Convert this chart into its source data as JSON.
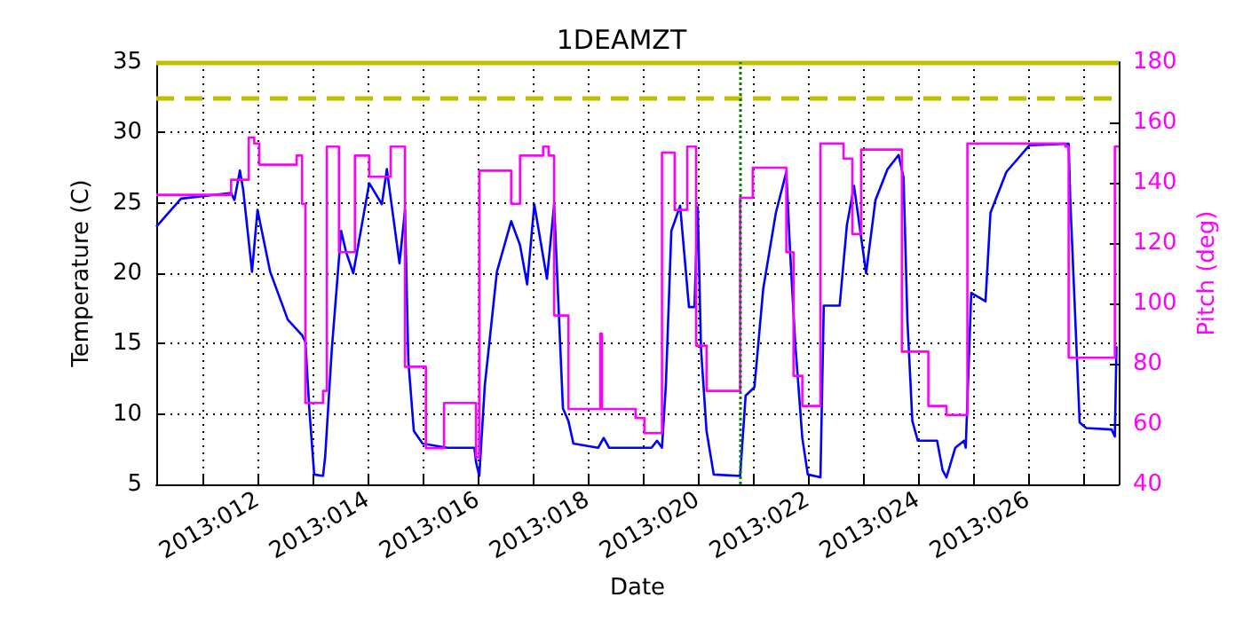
{
  "chart_data": {
    "type": "line",
    "title": "1DEAMZT",
    "xlabel": "Date",
    "ylabel": "Temperature (C)",
    "y2label": "Pitch (deg)",
    "xlim": [
      "2013-01-10T03:50",
      "2013-01-27T15:36"
    ],
    "xticks": [
      {
        "value": "2013-01-11",
        "label": null
      },
      {
        "value": "2013-01-12",
        "label": "2013:012"
      },
      {
        "value": "2013-01-13",
        "label": null
      },
      {
        "value": "2013-01-14",
        "label": "2013:014"
      },
      {
        "value": "2013-01-15",
        "label": null
      },
      {
        "value": "2013-01-16",
        "label": "2013:016"
      },
      {
        "value": "2013-01-17",
        "label": null
      },
      {
        "value": "2013-01-18",
        "label": "2013:018"
      },
      {
        "value": "2013-01-19",
        "label": null
      },
      {
        "value": "2013-01-20",
        "label": "2013:020"
      },
      {
        "value": "2013-01-21",
        "label": null
      },
      {
        "value": "2013-01-22",
        "label": "2013:022"
      },
      {
        "value": "2013-01-23",
        "label": null
      },
      {
        "value": "2013-01-24",
        "label": "2013:024"
      },
      {
        "value": "2013-01-25",
        "label": null
      },
      {
        "value": "2013-01-26",
        "label": "2013:026"
      },
      {
        "value": "2013-01-27",
        "label": null
      }
    ],
    "ylim": [
      5,
      35
    ],
    "yticks": [
      5,
      10,
      15,
      20,
      25,
      30,
      35
    ],
    "y2lim": [
      40,
      180
    ],
    "y2ticks": [
      40,
      60,
      80,
      100,
      120,
      140,
      160,
      180
    ],
    "grid": true,
    "series": [
      {
        "color": "#0000ff",
        "x": [
          "2013-01-10T03:50",
          "2013-01-10T14:38",
          "2013-01-11T12:29",
          "2013-01-11T13:55",
          "2013-01-11T16:19",
          "2013-01-11T17:46",
          "2013-01-11T21:36",
          "2013-01-12T00:00",
          "2013-01-12T05:31",
          "2013-01-12T13:12",
          "2013-01-12T19:26",
          "2013-01-12T20:53",
          "2013-01-12T22:34",
          "2013-01-13T00:43",
          "2013-01-13T04:34",
          "2013-01-13T05:31",
          "2013-01-13T08:24",
          "2013-01-13T12:29",
          "2013-01-13T14:38",
          "2013-01-13T17:46",
          "2013-01-14T00:43",
          "2013-01-14T06:14",
          "2013-01-14T08:24",
          "2013-01-14T13:55",
          "2013-01-14T16:19",
          "2013-01-14T17:46",
          "2013-01-14T20:10",
          "2013-01-15T00:00",
          "2013-01-15T10:48",
          "2013-01-15T22:34",
          "2013-01-15T23:17",
          "2013-01-16T00:43",
          "2013-01-16T03:07",
          "2013-01-16T08:24",
          "2013-01-16T14:38",
          "2013-01-16T18:29",
          "2013-01-16T21:36",
          "2013-01-17T00:43",
          "2013-01-17T06:14",
          "2013-01-17T09:22",
          "2013-01-17T13:12",
          "2013-01-17T15:36",
          "2013-01-17T17:46",
          "2013-01-18T04:34",
          "2013-01-18T06:58",
          "2013-01-18T09:22",
          "2013-01-19T03:50",
          "2013-01-19T06:14",
          "2013-01-19T08:24",
          "2013-01-19T10:05",
          "2013-01-19T12:29",
          "2013-01-19T16:19",
          "2013-01-19T20:10",
          "2013-01-19T22:34",
          "2013-01-20T00:00",
          "2013-01-20T01:26",
          "2013-01-20T03:50",
          "2013-01-20T06:58",
          "2013-01-20T18:29",
          "2013-01-20T20:53",
          "2013-01-21T00:43",
          "2013-01-21T04:34",
          "2013-01-21T10:05",
          "2013-01-21T14:38",
          "2013-01-21T16:19",
          "2013-01-21T18:29",
          "2013-01-21T21:36",
          "2013-01-22T00:00",
          "2013-01-22T05:31",
          "2013-01-22T06:58",
          "2013-01-22T13:55",
          "2013-01-22T17:02",
          "2013-01-22T20:10",
          "2013-01-23T01:26",
          "2013-01-23T05:31",
          "2013-01-23T10:48",
          "2013-01-23T15:36",
          "2013-01-23T17:46",
          "2013-01-23T19:26",
          "2013-01-23T21:36",
          "2013-01-24T00:00",
          "2013-01-24T08:24",
          "2013-01-24T10:48",
          "2013-01-24T12:29",
          "2013-01-24T16:19",
          "2013-01-24T20:10",
          "2013-01-24T20:53",
          "2013-01-24T23:17",
          "2013-01-25T05:31",
          "2013-01-25T07:41",
          "2013-01-25T14:38",
          "2013-01-26T00:43",
          "2013-01-26T17:46",
          "2013-01-26T18:29",
          "2013-01-26T22:34",
          "2013-01-27T01:26",
          "2013-01-27T12:29",
          "2013-01-27T13:55",
          "2013-01-27T14:38"
        ],
        "values": [
          23.3,
          25.3,
          25.7,
          25.2,
          27.3,
          25.9,
          20.1,
          24.5,
          20.1,
          16.7,
          15.6,
          15.1,
          10.4,
          5.7,
          5.6,
          7.0,
          14.6,
          23.0,
          21.5,
          20.0,
          26.4,
          24.9,
          27.4,
          20.7,
          24.5,
          13.8,
          8.8,
          7.9,
          7.6,
          7.6,
          6.6,
          5.6,
          12.0,
          20.1,
          23.7,
          22.0,
          19.2,
          24.9,
          19.6,
          24.9,
          10.4,
          9.5,
          7.9,
          7.6,
          8.3,
          7.6,
          7.6,
          8.1,
          7.6,
          12.0,
          23.0,
          24.8,
          17.6,
          17.6,
          24.7,
          14.6,
          8.8,
          5.7,
          5.6,
          11.3,
          11.9,
          18.9,
          24.3,
          27.2,
          21.4,
          15.1,
          8.3,
          5.7,
          5.5,
          17.7,
          17.7,
          23.4,
          26.2,
          20.0,
          25.2,
          27.4,
          28.4,
          26.8,
          16.7,
          9.5,
          8.1,
          8.1,
          6.0,
          5.5,
          7.6,
          8.1,
          7.6,
          18.6,
          18.0,
          24.3,
          27.2,
          29.1,
          29.2,
          25.2,
          9.4,
          9.0,
          8.9,
          8.4,
          14.8
        ]
      },
      {
        "color": "#ff00ff",
        "axis": "y2",
        "x": [
          "2013-01-10T03:50",
          "2013-01-11T12:29",
          "2013-01-11T12:29",
          "2013-01-11T20:10",
          "2013-01-11T20:10",
          "2013-01-11T22:34",
          "2013-01-11T22:34",
          "2013-01-12T00:43",
          "2013-01-12T00:43",
          "2013-01-12T17:02",
          "2013-01-12T17:02",
          "2013-01-12T19:26",
          "2013-01-12T19:26",
          "2013-01-12T20:53",
          "2013-01-12T20:53",
          "2013-01-13T04:34",
          "2013-01-13T04:34",
          "2013-01-13T06:14",
          "2013-01-13T06:14",
          "2013-01-13T11:31",
          "2013-01-13T11:31",
          "2013-01-13T18:29",
          "2013-01-13T18:29",
          "2013-01-14T00:43",
          "2013-01-14T00:43",
          "2013-01-14T10:05",
          "2013-01-14T10:05",
          "2013-01-14T16:19",
          "2013-01-14T16:19",
          "2013-01-15T01:26",
          "2013-01-15T01:26",
          "2013-01-15T09:22",
          "2013-01-15T09:22",
          "2013-01-15T23:17",
          "2013-01-15T23:17",
          "2013-01-16T00:43",
          "2013-01-16T00:43",
          "2013-01-16T14:38",
          "2013-01-16T14:38",
          "2013-01-16T18:29",
          "2013-01-16T18:29",
          "2013-01-17T04:34",
          "2013-01-17T04:34",
          "2013-01-17T06:58",
          "2013-01-17T06:58",
          "2013-01-17T09:22",
          "2013-01-17T09:22",
          "2013-01-17T15:36",
          "2013-01-17T15:36",
          "2013-01-18T05:31",
          "2013-01-18T05:31",
          "2013-01-18T06:14",
          "2013-01-18T06:14",
          "2013-01-18T20:53",
          "2013-01-18T20:53",
          "2013-01-19T00:43",
          "2013-01-19T00:43",
          "2013-01-19T08:24",
          "2013-01-19T08:24",
          "2013-01-19T13:55",
          "2013-01-19T13:55",
          "2013-01-19T19:26",
          "2013-01-19T19:26",
          "2013-01-19T23:17",
          "2013-01-19T23:17",
          "2013-01-20T03:50",
          "2013-01-20T03:50",
          "2013-01-20T18:29",
          "2013-01-20T18:29",
          "2013-01-21T00:00",
          "2013-01-21T00:00",
          "2013-01-21T14:38",
          "2013-01-21T14:38",
          "2013-01-21T17:46",
          "2013-01-21T17:46",
          "2013-01-21T21:36",
          "2013-01-21T21:36",
          "2013-01-22T05:31",
          "2013-01-22T05:31",
          "2013-01-22T15:36",
          "2013-01-22T15:36",
          "2013-01-22T19:26",
          "2013-01-22T19:26",
          "2013-01-22T23:17",
          "2013-01-22T23:17",
          "2013-01-23T17:02",
          "2013-01-23T17:02",
          "2013-01-24T04:34",
          "2013-01-24T04:34",
          "2013-01-24T12:29",
          "2013-01-24T12:29",
          "2013-01-24T21:36",
          "2013-01-24T21:36",
          "2013-01-26T16:19",
          "2013-01-26T16:19",
          "2013-01-26T17:46",
          "2013-01-26T17:46",
          "2013-01-27T13:55",
          "2013-01-27T13:55",
          "2013-01-27T15:36"
        ],
        "values": [
          136,
          136,
          141,
          141,
          155,
          155,
          153,
          153,
          146,
          146,
          149,
          149,
          133,
          133,
          67,
          67,
          71,
          71,
          152,
          152,
          117,
          117,
          149,
          149,
          142,
          142,
          152,
          152,
          79,
          79,
          52,
          52,
          67,
          67,
          49,
          49,
          144,
          144,
          133,
          133,
          149,
          149,
          152,
          152,
          149,
          149,
          96,
          96,
          65,
          65,
          90,
          90,
          65,
          65,
          62,
          62,
          57,
          57,
          150,
          150,
          131,
          131,
          152,
          152,
          86,
          86,
          71,
          71,
          135,
          135,
          145,
          145,
          117,
          117,
          76,
          76,
          66,
          66,
          153,
          153,
          148,
          148,
          123,
          123,
          151,
          151,
          84,
          84,
          66,
          66,
          63,
          63,
          153,
          153,
          152,
          152,
          82,
          82,
          152,
          152
        ]
      }
    ],
    "ref_lines": [
      {
        "axis": "y",
        "value": 35,
        "color": "#bfbf00",
        "line_style": "solid"
      },
      {
        "axis": "y",
        "value": 32.5,
        "color": "#bfbf00",
        "line_style": "dashed"
      },
      {
        "axis": "x",
        "value": "2013-01-20T18:29",
        "color": "#008000",
        "line_style": "dotted"
      }
    ]
  }
}
